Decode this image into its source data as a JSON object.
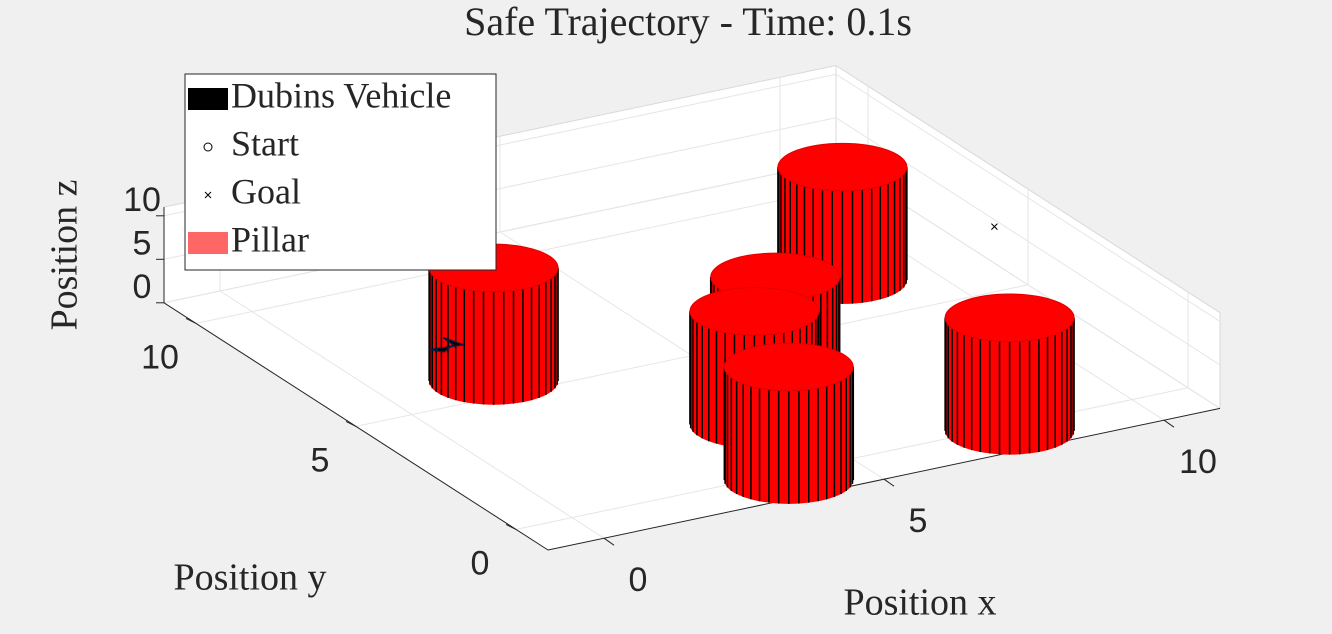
{
  "chart_data": {
    "type": "scatter3d",
    "title": "Safe Trajectory - Time: 0.1s",
    "xlabel": "Position x",
    "ylabel": "Position y",
    "zlabel": "Position z",
    "xlim": [
      -1,
      11
    ],
    "ylim": [
      -1,
      11
    ],
    "zlim": [
      0,
      11
    ],
    "xticks": [
      0,
      5,
      10
    ],
    "yticks": [
      0,
      5,
      10
    ],
    "zticks": [
      0,
      5,
      10
    ],
    "grid": true,
    "legend": "upper left",
    "series": [
      {
        "name": "Dubins Vehicle",
        "color": "#000000",
        "marker": "vehicle",
        "x": [
          1.1
        ],
        "y": [
          5.7
        ],
        "z": [
          5
        ]
      },
      {
        "name": "Start",
        "color": "#000000",
        "marker": "circle",
        "x": [
          1.1
        ],
        "y": [
          5.7
        ],
        "z": [
          5
        ]
      },
      {
        "name": "Goal",
        "color": "#000000",
        "marker": "x",
        "x": [
          10
        ],
        "y": [
          4.3
        ],
        "z": [
          9.7
        ]
      },
      {
        "name": "Pillar",
        "color": "#ff0000",
        "marker": "cylinder",
        "x": [
          1.8,
          8.6,
          5.4,
          4.4,
          3.7,
          7.7
        ],
        "y": [
          5.6,
          6.6,
          3.1,
          2.0,
          -0.3,
          -0.2
        ],
        "radius": [
          1,
          1,
          1,
          1,
          1,
          1
        ],
        "height": [
          13,
          13,
          13,
          13,
          13,
          13
        ]
      }
    ]
  }
}
